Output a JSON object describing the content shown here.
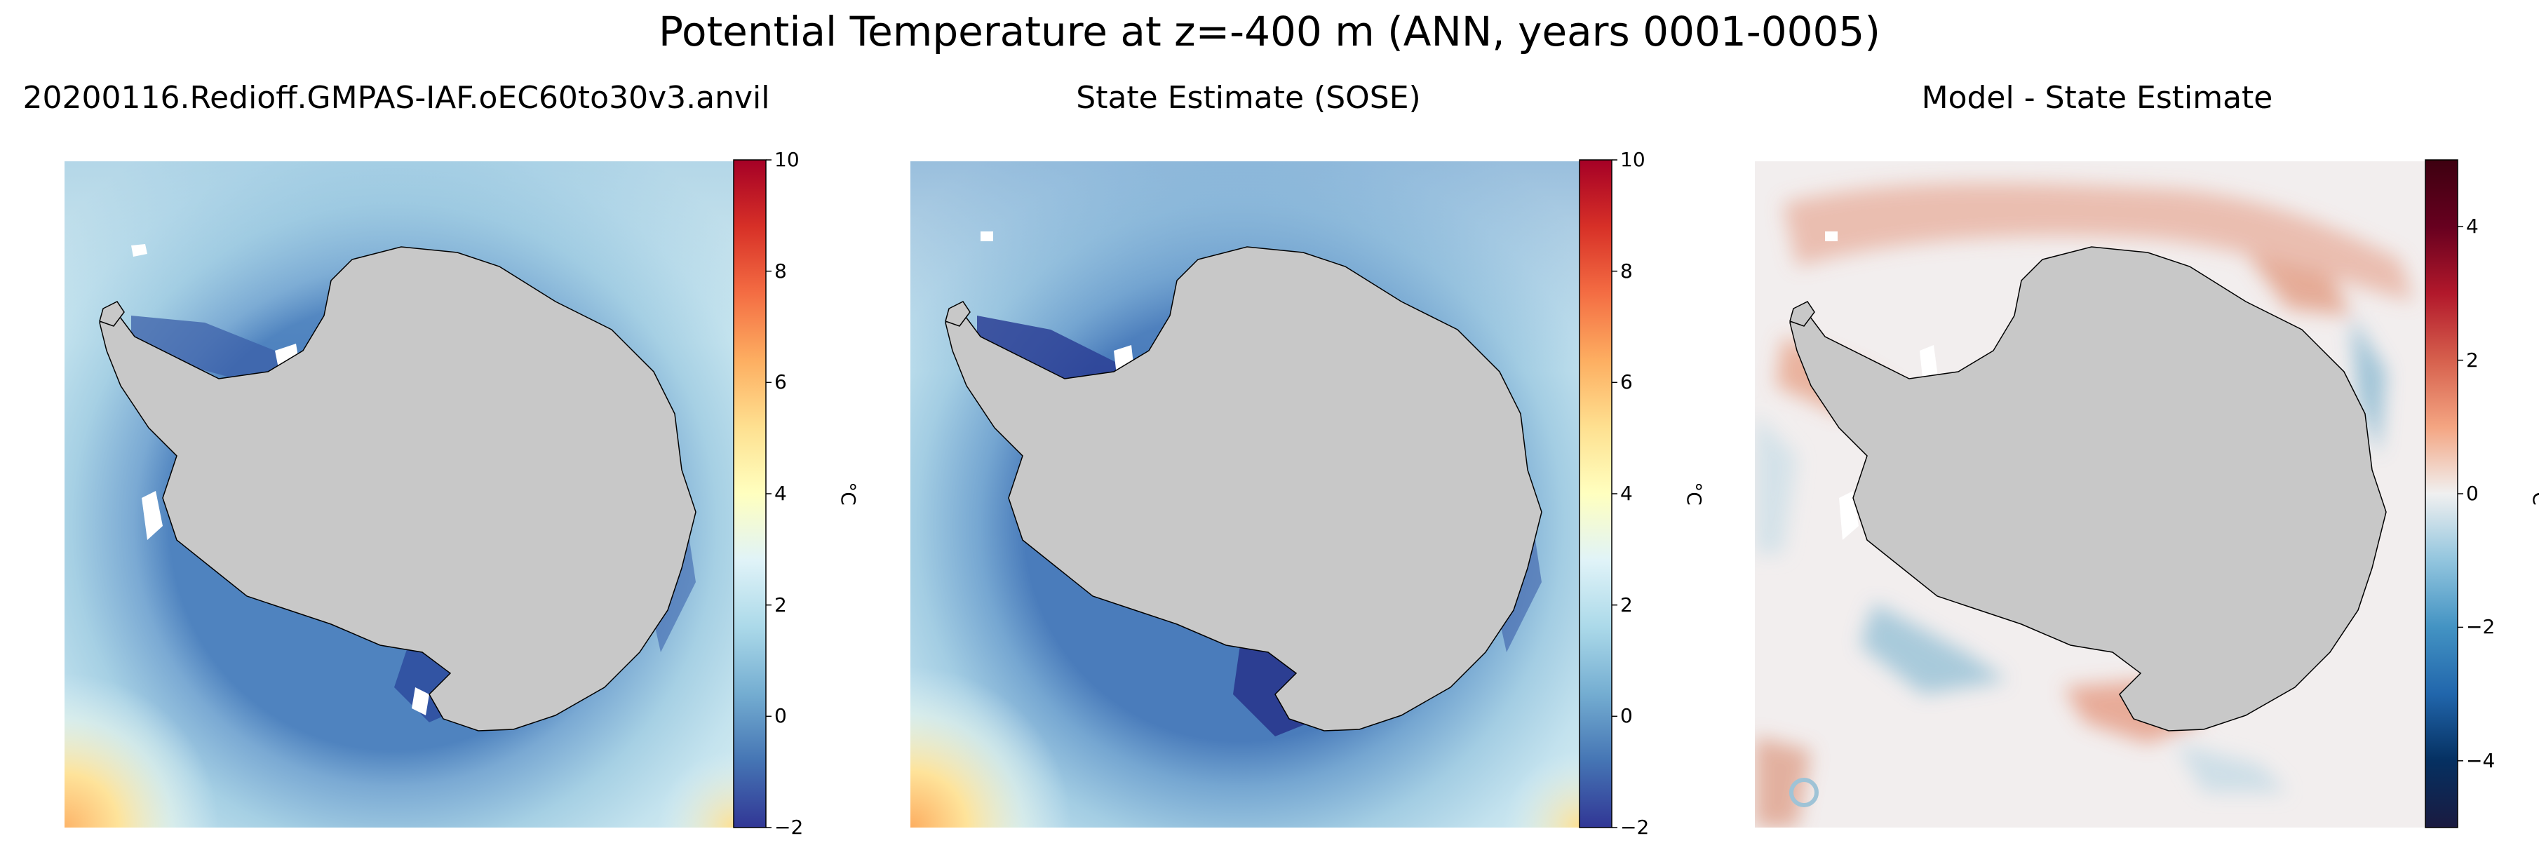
{
  "figure": {
    "title": "Potential Temperature at z=-400 m (ANN, years 0001-0005)"
  },
  "panels": [
    {
      "title": "20200116.Redioff.GMPAS-IAF.oEC60to30v3.anvil",
      "colorbar": {
        "unit": "°C",
        "colormap": "RdYlBu_r",
        "range": [
          -2,
          10
        ],
        "ticks": [
          "−2",
          "0",
          "2",
          "4",
          "6",
          "8",
          "10"
        ],
        "tick_values": [
          -2,
          0,
          2,
          4,
          6,
          8,
          10
        ],
        "colors": [
          "#313695",
          "#4575b4",
          "#74add1",
          "#abd9e9",
          "#e0f3f8",
          "#ffffbf",
          "#fee090",
          "#fdae61",
          "#f46d43",
          "#d73027",
          "#a50026"
        ]
      },
      "field": "model"
    },
    {
      "title": "State Estimate (SOSE)",
      "colorbar": {
        "unit": "°C",
        "colormap": "RdYlBu_r",
        "range": [
          -2,
          10
        ],
        "ticks": [
          "−2",
          "0",
          "2",
          "4",
          "6",
          "8",
          "10"
        ],
        "tick_values": [
          -2,
          0,
          2,
          4,
          6,
          8,
          10
        ],
        "colors": [
          "#313695",
          "#4575b4",
          "#74add1",
          "#abd9e9",
          "#e0f3f8",
          "#ffffbf",
          "#fee090",
          "#fdae61",
          "#f46d43",
          "#d73027",
          "#a50026"
        ]
      },
      "field": "obs"
    },
    {
      "title": "Model - State Estimate",
      "colorbar": {
        "unit": "°C",
        "colormap": "RdBu_r",
        "range": [
          -5,
          5
        ],
        "ticks": [
          "−4",
          "−2",
          "0",
          "2",
          "4"
        ],
        "tick_values": [
          -4,
          -2,
          0,
          2,
          4
        ],
        "colors": [
          "#1a1a40",
          "#053061",
          "#2166ac",
          "#4393c3",
          "#92c5de",
          "#f0f0f0",
          "#f4a582",
          "#d6604d",
          "#b2182b",
          "#67001f",
          "#3d0010"
        ]
      },
      "field": "diff"
    }
  ],
  "colors": {
    "land": "#c8c8c8",
    "coastline": "#000000",
    "no_data": "#ffffff"
  }
}
